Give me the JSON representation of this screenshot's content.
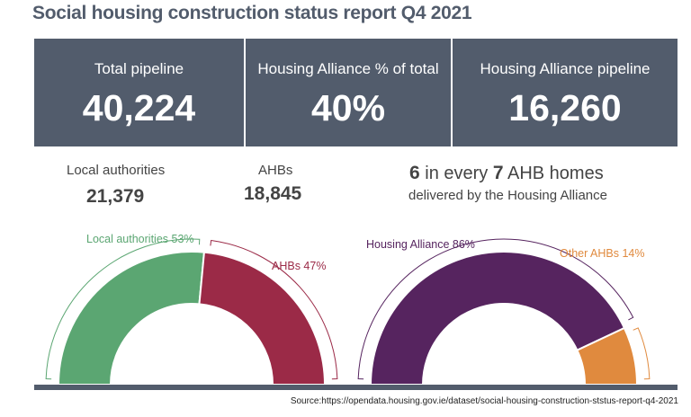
{
  "title": "Social housing construction status report Q4 2021",
  "kpis": [
    {
      "label": "Total pipeline",
      "value": "40,224"
    },
    {
      "label": "Housing Alliance % of total",
      "value": "40%"
    },
    {
      "label": "Housing Alliance pipeline",
      "value": "16,260"
    }
  ],
  "breakdown": {
    "local_authorities": {
      "label": "Local authorities",
      "value": "21,379"
    },
    "ahbs": {
      "label": "AHBs",
      "value": "18,845"
    }
  },
  "stat": {
    "num1": "6",
    "mid": " in every ",
    "num2": "7",
    "tail": " AHB homes",
    "subline": "delivered by the Housing Alliance"
  },
  "source": "Source:https://opendata.housing.gov.ie/dataset/social-housing-construction-ststus-report-q4-2021",
  "chart_data": [
    {
      "type": "pie",
      "shape": "semi-donut",
      "slices": [
        {
          "label": "Local authorities 53%",
          "value": 53,
          "color": "#5ba672"
        },
        {
          "label": "AHBs 47%",
          "value": 47,
          "color": "#9b2a47"
        }
      ]
    },
    {
      "type": "pie",
      "shape": "semi-donut",
      "slices": [
        {
          "label": "Housing Alliance 86%",
          "value": 86,
          "color": "#56245f"
        },
        {
          "label": "Other AHBs 14%",
          "value": 14,
          "color": "#e08a3e"
        }
      ]
    }
  ]
}
